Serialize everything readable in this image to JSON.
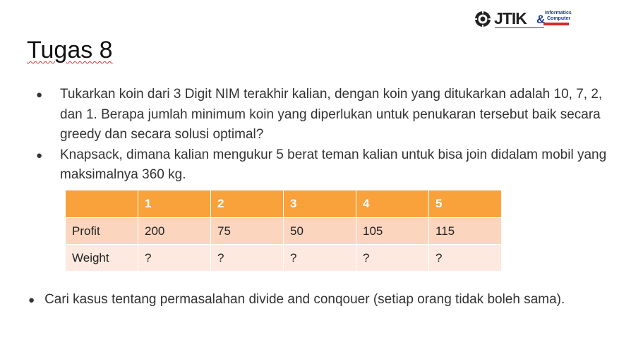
{
  "logo": {
    "wordmark": "JTIK",
    "ampersand": "&",
    "sub_line1": "Informatics",
    "sub_line2": "Computer",
    "brand_color": "#1f3a8a",
    "accent_color": "#d62828"
  },
  "slide": {
    "title": "Tugas 8"
  },
  "bullets": [
    {
      "icon": "bullet-dot",
      "text": "Tukarkan koin dari 3 Digit NIM terakhir kalian, dengan koin yang ditukarkan adalah 10, 7, 2, dan 1. Berapa jumlah minimum koin yang diperlukan untuk penukaran tersebut baik secara greedy dan secara solusi optimal?"
    },
    {
      "icon": "bullet-dot",
      "text": "Knapsack, dimana kalian mengukur 5 berat teman kalian untuk bisa join didalam mobil yang maksimalnya 360 kg."
    }
  ],
  "table": {
    "header": [
      "",
      "1",
      "2",
      "3",
      "4",
      "5"
    ],
    "rows": [
      [
        "Profit",
        "200",
        "75",
        "50",
        "105",
        "115"
      ],
      [
        "Weight",
        "?",
        "?",
        "?",
        "?",
        "?"
      ]
    ],
    "header_color": "#f9a23b",
    "row1_color": "#fcd5bf",
    "row2_color": "#fde9df"
  },
  "footer_bullet": {
    "icon": "bullet-dot",
    "text": "Cari kasus tentang permasalahan divide and conqouer (setiap orang tidak boleh sama)."
  }
}
